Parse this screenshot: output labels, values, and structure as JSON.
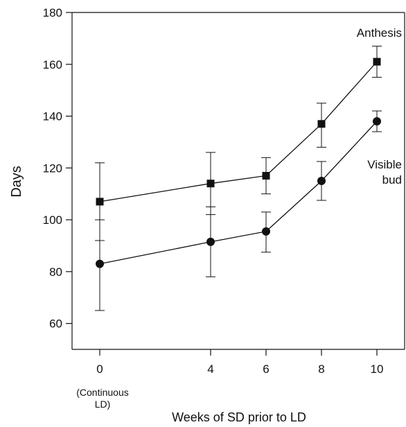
{
  "chart_data": {
    "type": "line",
    "title": "",
    "xlabel": "Weeks of SD prior to LD",
    "ylabel": "Days",
    "x_ticks": [
      {
        "value": 0,
        "label": "0"
      },
      {
        "value": 4,
        "label": "4"
      },
      {
        "value": 6,
        "label": "6"
      },
      {
        "value": 8,
        "label": "8"
      },
      {
        "value": 10,
        "label": "10"
      }
    ],
    "x_note_lines": [
      "(Continuous",
      "LD)"
    ],
    "y_ticks": [
      60,
      80,
      100,
      120,
      140,
      160,
      180
    ],
    "xlim": [
      -1,
      11
    ],
    "ylim": [
      50,
      180
    ],
    "grid": false,
    "legend": "none",
    "series": [
      {
        "name": "Anthesis",
        "name_lines": [
          "Anthesis"
        ],
        "marker": "square",
        "color": "#111111",
        "points": [
          {
            "x": 0,
            "y": 107,
            "err_low": 92,
            "err_high": 122
          },
          {
            "x": 4,
            "y": 114,
            "err_low": 102,
            "err_high": 126
          },
          {
            "x": 6,
            "y": 117,
            "err_low": 110,
            "err_high": 124
          },
          {
            "x": 8,
            "y": 137,
            "err_low": 128,
            "err_high": 145
          },
          {
            "x": 10,
            "y": 161,
            "err_low": 155,
            "err_high": 167
          }
        ]
      },
      {
        "name": "Visible bud",
        "name_lines": [
          "Visible",
          "bud"
        ],
        "marker": "circle",
        "color": "#111111",
        "points": [
          {
            "x": 0,
            "y": 83,
            "err_low": 65,
            "err_high": 100
          },
          {
            "x": 4,
            "y": 91.5,
            "err_low": 78,
            "err_high": 105
          },
          {
            "x": 6,
            "y": 95.5,
            "err_low": 87.5,
            "err_high": 103
          },
          {
            "x": 8,
            "y": 115,
            "err_low": 107.5,
            "err_high": 122.5
          },
          {
            "x": 10,
            "y": 138,
            "err_low": 134,
            "err_high": 142
          }
        ]
      }
    ]
  }
}
